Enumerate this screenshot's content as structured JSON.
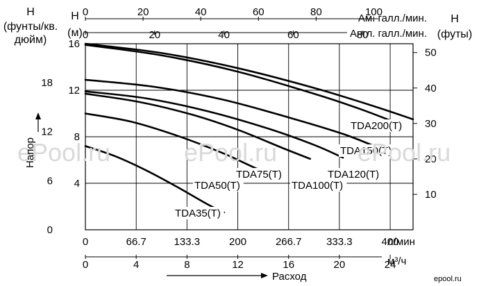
{
  "labels": {
    "h_left_line1": "H",
    "h_left_line2": "(фунты/кв.",
    "h_left_line3": "дюйм)",
    "h_m_line1": "H",
    "h_m_line2": "(м)",
    "h_right_line1": "H",
    "h_right_line2": "(футы)",
    "usgal_label": "Ам. галл./мин.",
    "ukgal_label": "Англ. галл./мин.",
    "lmin_label": "л/мин",
    "m3h_label": "м³/ч",
    "flow_label": "Расход",
    "head_label": "Напор",
    "watermark_text": "ePool.ru",
    "logo_text": "epool.ru"
  },
  "chart_data": {
    "type": "line",
    "xlabel": "Расход",
    "ylabel": "Напор",
    "x_unit": "л/мин",
    "y_unit": "м",
    "xlim": [
      0,
      430
    ],
    "ylim": [
      0,
      16
    ],
    "grid": true,
    "axes": {
      "usgal_ticks": [
        "0",
        "20",
        "40",
        "60",
        "80",
        "100"
      ],
      "ukgal_ticks": [
        "0",
        "20",
        "40",
        "60",
        "80"
      ],
      "lmin_ticks": [
        "0",
        "66.7",
        "133.3",
        "200",
        "266.7",
        "333.3",
        "400"
      ],
      "m3h_ticks": [
        "0",
        "4",
        "8",
        "12",
        "16",
        "20",
        "24"
      ],
      "head_m_ticks": [
        "4",
        "8",
        "12",
        "16"
      ],
      "head_psi_ticks": [
        "0",
        "6",
        "12",
        "18"
      ],
      "head_ft_ticks": [
        "10",
        "20",
        "30",
        "40",
        "50"
      ]
    },
    "series": [
      {
        "name": "TDA35(T)",
        "x": [
          0,
          40,
          80,
          120,
          160,
          182
        ],
        "y": [
          7.2,
          6.3,
          5.1,
          3.7,
          2.2,
          1.5
        ]
      },
      {
        "name": "TDA50(T)",
        "x": [
          0,
          60,
          120,
          180,
          220,
          255
        ],
        "y": [
          10.0,
          9.3,
          8.1,
          6.6,
          5.4,
          4.4
        ]
      },
      {
        "name": "TDA75(T)",
        "x": [
          0,
          70,
          140,
          200,
          260,
          295
        ],
        "y": [
          11.7,
          11.0,
          9.9,
          8.6,
          7.0,
          6.1
        ]
      },
      {
        "name": "TDA100(T)",
        "x": [
          0,
          80,
          160,
          240,
          300,
          338
        ],
        "y": [
          11.9,
          11.3,
          10.2,
          8.7,
          7.3,
          6.2
        ]
      },
      {
        "name": "TDA120(T)",
        "x": [
          0,
          90,
          180,
          270,
          340,
          390
        ],
        "y": [
          12.9,
          12.3,
          11.2,
          9.6,
          8.2,
          6.9
        ]
      },
      {
        "name": "TDA150(T)",
        "x": [
          0,
          100,
          200,
          300,
          360,
          412
        ],
        "y": [
          15.9,
          15.0,
          13.6,
          11.7,
          10.4,
          9.1
        ]
      },
      {
        "name": "TDA200(T)",
        "x": [
          0,
          100,
          200,
          300,
          380,
          430
        ],
        "y": [
          16.0,
          15.2,
          13.9,
          12.2,
          10.6,
          9.5
        ]
      }
    ]
  }
}
